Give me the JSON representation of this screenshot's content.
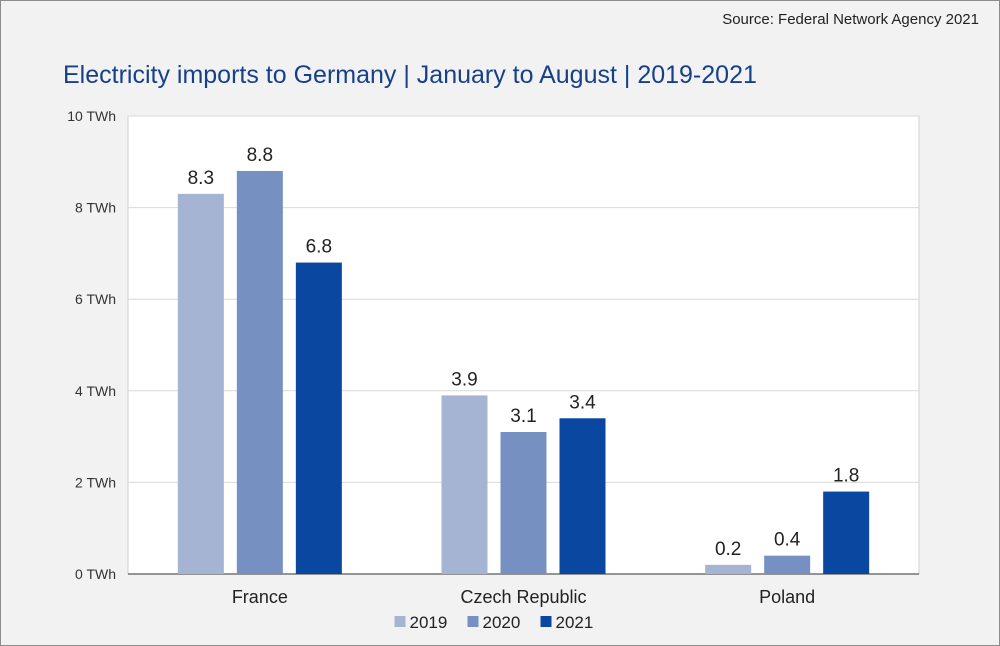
{
  "source": "Source: Federal Network Agency 2021",
  "chart_data": {
    "type": "bar",
    "title": "Electricity imports to Germany | January to August | 2019-2021",
    "categories": [
      "France",
      "Czech Republic",
      "Poland"
    ],
    "series": [
      {
        "name": "2019",
        "color": "#a6b4d4",
        "values": [
          8.3,
          3.9,
          0.2
        ],
        "labels": [
          "8.3",
          "3.9",
          "0.2"
        ]
      },
      {
        "name": "2020",
        "color": "#7590c1",
        "values": [
          8.8,
          3.1,
          0.4
        ],
        "labels": [
          "8.8",
          "3.1",
          "0.4"
        ]
      },
      {
        "name": "2021",
        "color": "#0a47a0",
        "values": [
          6.8,
          3.4,
          1.8
        ],
        "labels": [
          "6.8",
          "3.4",
          "1.8"
        ]
      }
    ],
    "ylim": [
      0,
      10
    ],
    "yticks": [
      0,
      2,
      4,
      6,
      8,
      10
    ],
    "ytick_labels": [
      "0 TWh",
      "2 TWh",
      "4 TWh",
      "6 TWh",
      "8 TWh",
      "10 TWh"
    ],
    "grid": true,
    "legend": "bottom-center"
  }
}
